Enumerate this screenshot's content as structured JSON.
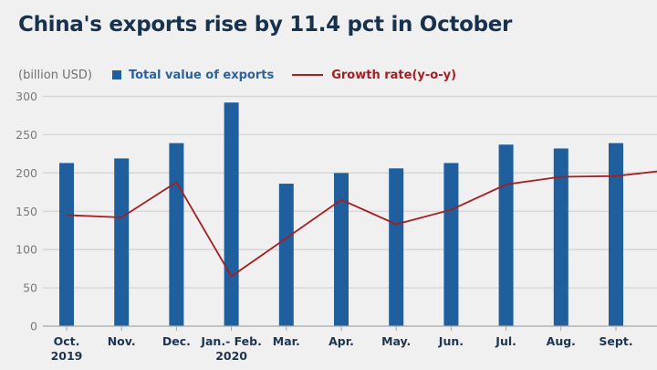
{
  "title": "China's exports rise by 11.4 pct in October",
  "legend": {
    "unit": "(billion USD)",
    "bar_label": "Total value of exports",
    "line_label": "Growth rate(y-o-y)"
  },
  "colors": {
    "bar": "#1f5f9e",
    "line": "#a41e22",
    "grid": "#d5d5d5"
  },
  "chart_data": {
    "type": "bar",
    "title": "China's exports rise by 11.4 pct in October",
    "xlabel": "",
    "ylabel": "(billion USD)",
    "ylim": [
      0,
      300
    ],
    "yticks": [
      0,
      50,
      100,
      150,
      200,
      250,
      300
    ],
    "grid": true,
    "legend_position": "top-left",
    "categories": [
      "Oct.|2019",
      "Nov.",
      "Dec.",
      "Jan.- Feb.|2020",
      "Mar.",
      "Apr.",
      "May.",
      "Jun.",
      "Jul.",
      "Aug.",
      "Sept."
    ],
    "series": [
      {
        "name": "Total value of exports",
        "type": "bar",
        "values": [
          213,
          219,
          239,
          292,
          186,
          200,
          206,
          213,
          237,
          232,
          239
        ]
      },
      {
        "name": "Growth rate(y-o-y)",
        "type": "line",
        "values": [
          145,
          142,
          188,
          65,
          115,
          165,
          133,
          152,
          185,
          195,
          196
        ],
        "trailing_value": 202,
        "note": "line plotted on same visual scale; no secondary axis shown"
      }
    ]
  }
}
